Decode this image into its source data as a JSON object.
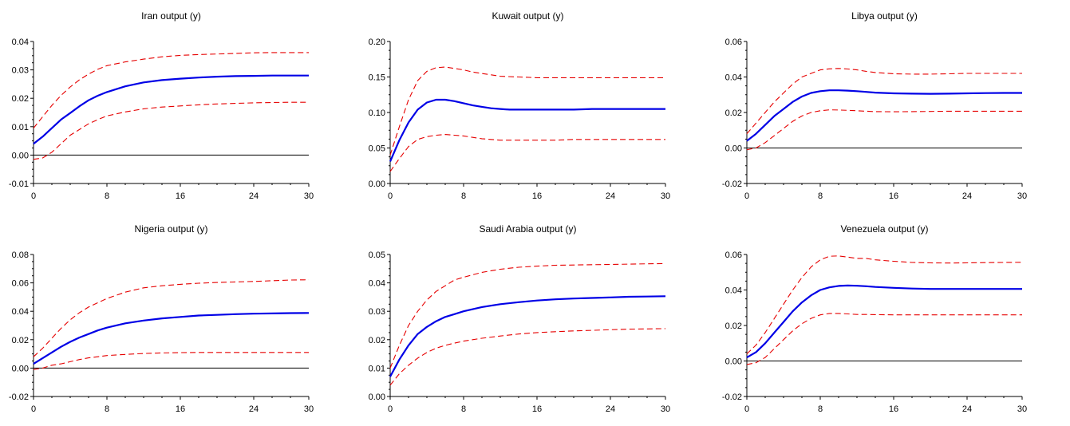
{
  "colors": {
    "irf": "#0000e6",
    "band": "#e60000",
    "axis": "#000000",
    "zero": "#000000"
  },
  "chart_data": [
    {
      "type": "line",
      "title": "Iran output (y)",
      "xlabel": "",
      "ylabel": "",
      "xlim": [
        0,
        30
      ],
      "ylim": [
        -0.01,
        0.04
      ],
      "xticks": [
        0,
        8,
        16,
        24,
        30
      ],
      "yticks": [
        -0.01,
        0.0,
        0.01,
        0.02,
        0.03,
        0.04
      ],
      "ytick_labels": [
        "-0.01",
        "0.00",
        "0.01",
        "0.02",
        "0.03",
        "0.04"
      ],
      "zero_line": true,
      "series": [
        {
          "role": "irf",
          "style": "solid",
          "x": [
            0,
            1,
            2,
            3,
            4,
            5,
            6,
            7,
            8,
            10,
            12,
            14,
            16,
            18,
            20,
            22,
            24,
            26,
            28,
            30
          ],
          "y": [
            0.004,
            0.0065,
            0.0095,
            0.0125,
            0.0148,
            0.0172,
            0.0193,
            0.0209,
            0.0222,
            0.0242,
            0.0256,
            0.0264,
            0.0269,
            0.0273,
            0.0276,
            0.0278,
            0.0279,
            0.028,
            0.028,
            0.028
          ]
        },
        {
          "role": "upper",
          "style": "dashed",
          "x": [
            0,
            1,
            2,
            3,
            4,
            5,
            6,
            7,
            8,
            10,
            12,
            14,
            16,
            18,
            20,
            22,
            24,
            26,
            28,
            30
          ],
          "y": [
            0.0095,
            0.0135,
            0.0175,
            0.021,
            0.024,
            0.0265,
            0.0285,
            0.0302,
            0.0315,
            0.0328,
            0.0338,
            0.0346,
            0.0351,
            0.0354,
            0.0356,
            0.0358,
            0.036,
            0.0361,
            0.0361,
            0.0361
          ]
        },
        {
          "role": "lower",
          "style": "dashed",
          "x": [
            0,
            1,
            2,
            3,
            4,
            5,
            6,
            7,
            8,
            10,
            12,
            14,
            16,
            18,
            20,
            22,
            24,
            26,
            28,
            30
          ],
          "y": [
            -0.0015,
            -0.001,
            0.001,
            0.004,
            0.007,
            0.009,
            0.011,
            0.0125,
            0.0138,
            0.0152,
            0.0163,
            0.0169,
            0.0173,
            0.0177,
            0.018,
            0.0182,
            0.0184,
            0.0185,
            0.0186,
            0.0186
          ]
        }
      ]
    },
    {
      "type": "line",
      "title": "Kuwait output (y)",
      "xlabel": "",
      "ylabel": "",
      "xlim": [
        0,
        30
      ],
      "ylim": [
        0.0,
        0.2
      ],
      "xticks": [
        0,
        8,
        16,
        24,
        30
      ],
      "yticks": [
        0.0,
        0.05,
        0.1,
        0.15,
        0.2
      ],
      "ytick_labels": [
        "0.00",
        "0.05",
        "0.10",
        "0.15",
        "0.20"
      ],
      "zero_line": false,
      "series": [
        {
          "role": "irf",
          "style": "solid",
          "x": [
            0,
            1,
            2,
            3,
            4,
            5,
            6,
            7,
            8,
            9,
            10,
            11,
            12,
            13,
            14,
            16,
            18,
            20,
            22,
            24,
            26,
            28,
            30
          ],
          "y": [
            0.031,
            0.061,
            0.086,
            0.104,
            0.114,
            0.118,
            0.118,
            0.116,
            0.113,
            0.11,
            0.108,
            0.106,
            0.105,
            0.104,
            0.104,
            0.104,
            0.104,
            0.104,
            0.105,
            0.105,
            0.105,
            0.105,
            0.105
          ]
        },
        {
          "role": "upper",
          "style": "dashed",
          "x": [
            0,
            1,
            2,
            3,
            4,
            5,
            6,
            7,
            8,
            9,
            10,
            11,
            12,
            14,
            16,
            18,
            20,
            22,
            24,
            26,
            28,
            30
          ],
          "y": [
            0.04,
            0.08,
            0.118,
            0.145,
            0.158,
            0.163,
            0.164,
            0.162,
            0.16,
            0.157,
            0.155,
            0.153,
            0.151,
            0.15,
            0.149,
            0.149,
            0.149,
            0.149,
            0.149,
            0.149,
            0.149,
            0.149
          ]
        },
        {
          "role": "lower",
          "style": "dashed",
          "x": [
            0,
            1,
            2,
            3,
            4,
            5,
            6,
            7,
            8,
            9,
            10,
            11,
            12,
            14,
            16,
            18,
            20,
            22,
            24,
            26,
            28,
            30
          ],
          "y": [
            0.017,
            0.035,
            0.052,
            0.062,
            0.066,
            0.068,
            0.069,
            0.068,
            0.067,
            0.065,
            0.063,
            0.062,
            0.061,
            0.061,
            0.061,
            0.061,
            0.062,
            0.062,
            0.062,
            0.062,
            0.062,
            0.062
          ]
        }
      ]
    },
    {
      "type": "line",
      "title": "Libya output (y)",
      "xlabel": "",
      "ylabel": "",
      "xlim": [
        0,
        30
      ],
      "ylim": [
        -0.02,
        0.06
      ],
      "xticks": [
        0,
        8,
        16,
        24,
        30
      ],
      "yticks": [
        -0.02,
        0.0,
        0.02,
        0.04,
        0.06
      ],
      "ytick_labels": [
        "-0.02",
        "0.00",
        "0.02",
        "0.04",
        "0.06"
      ],
      "zero_line": true,
      "series": [
        {
          "role": "irf",
          "style": "solid",
          "x": [
            0,
            1,
            2,
            3,
            4,
            5,
            6,
            7,
            8,
            9,
            10,
            11,
            12,
            13,
            14,
            16,
            18,
            20,
            22,
            24,
            26,
            28,
            30
          ],
          "y": [
            0.004,
            0.008,
            0.013,
            0.018,
            0.022,
            0.026,
            0.029,
            0.031,
            0.032,
            0.0325,
            0.0325,
            0.0323,
            0.032,
            0.0316,
            0.0312,
            0.0308,
            0.0306,
            0.0305,
            0.0306,
            0.0308,
            0.0309,
            0.031,
            0.031
          ]
        },
        {
          "role": "upper",
          "style": "dashed",
          "x": [
            0,
            1,
            2,
            3,
            4,
            5,
            6,
            7,
            8,
            9,
            10,
            11,
            12,
            13,
            14,
            16,
            18,
            20,
            22,
            24,
            26,
            28,
            30
          ],
          "y": [
            0.008,
            0.014,
            0.02,
            0.026,
            0.031,
            0.036,
            0.04,
            0.042,
            0.044,
            0.0446,
            0.0448,
            0.0445,
            0.044,
            0.0432,
            0.0425,
            0.0418,
            0.0416,
            0.0416,
            0.0418,
            0.042,
            0.042,
            0.042,
            0.042
          ]
        },
        {
          "role": "lower",
          "style": "dashed",
          "x": [
            0,
            1,
            2,
            3,
            4,
            5,
            6,
            7,
            8,
            9,
            10,
            11,
            12,
            13,
            14,
            16,
            18,
            20,
            22,
            24,
            26,
            28,
            30
          ],
          "y": [
            -0.001,
            0.0,
            0.003,
            0.007,
            0.011,
            0.015,
            0.018,
            0.02,
            0.021,
            0.0215,
            0.0214,
            0.0212,
            0.021,
            0.0207,
            0.0205,
            0.0204,
            0.0205,
            0.0206,
            0.0207,
            0.0207,
            0.0207,
            0.0207,
            0.0207
          ]
        }
      ]
    },
    {
      "type": "line",
      "title": "Nigeria output (y)",
      "xlabel": "",
      "ylabel": "",
      "xlim": [
        0,
        30
      ],
      "ylim": [
        -0.02,
        0.08
      ],
      "xticks": [
        0,
        8,
        16,
        24,
        30
      ],
      "yticks": [
        -0.02,
        0.0,
        0.02,
        0.04,
        0.06,
        0.08
      ],
      "ytick_labels": [
        "-0.02",
        "0.00",
        "0.02",
        "0.04",
        "0.06",
        "0.08"
      ],
      "zero_line": true,
      "series": [
        {
          "role": "irf",
          "style": "solid",
          "x": [
            0,
            1,
            2,
            3,
            4,
            5,
            6,
            7,
            8,
            10,
            12,
            14,
            16,
            18,
            20,
            22,
            24,
            26,
            28,
            30
          ],
          "y": [
            0.003,
            0.007,
            0.011,
            0.015,
            0.0185,
            0.0215,
            0.024,
            0.0265,
            0.0285,
            0.0315,
            0.0335,
            0.035,
            0.036,
            0.037,
            0.0375,
            0.038,
            0.0383,
            0.0385,
            0.0387,
            0.0388
          ]
        },
        {
          "role": "upper",
          "style": "dashed",
          "x": [
            0,
            1,
            2,
            3,
            4,
            5,
            6,
            7,
            8,
            10,
            12,
            14,
            16,
            18,
            20,
            22,
            24,
            26,
            28,
            30
          ],
          "y": [
            0.008,
            0.014,
            0.021,
            0.028,
            0.034,
            0.039,
            0.043,
            0.046,
            0.049,
            0.0535,
            0.0565,
            0.058,
            0.059,
            0.0598,
            0.0603,
            0.0607,
            0.061,
            0.0615,
            0.062,
            0.0622
          ]
        },
        {
          "role": "lower",
          "style": "dashed",
          "x": [
            0,
            1,
            2,
            3,
            4,
            5,
            6,
            7,
            8,
            10,
            12,
            14,
            16,
            18,
            20,
            22,
            24,
            26,
            28,
            30
          ],
          "y": [
            -0.001,
            0.0,
            0.002,
            0.003,
            0.0045,
            0.006,
            0.0072,
            0.008,
            0.0088,
            0.0096,
            0.0103,
            0.0107,
            0.0109,
            0.011,
            0.011,
            0.011,
            0.011,
            0.011,
            0.011,
            0.011
          ]
        }
      ]
    },
    {
      "type": "line",
      "title": "Saudi Arabia output (y)",
      "xlabel": "",
      "ylabel": "",
      "xlim": [
        0,
        30
      ],
      "ylim": [
        0.0,
        0.05
      ],
      "xticks": [
        0,
        8,
        16,
        24,
        30
      ],
      "yticks": [
        0.0,
        0.01,
        0.02,
        0.03,
        0.04,
        0.05
      ],
      "ytick_labels": [
        "0.00",
        "0.01",
        "0.02",
        "0.03",
        "0.04",
        "0.05"
      ],
      "zero_line": false,
      "series": [
        {
          "role": "irf",
          "style": "solid",
          "x": [
            0,
            1,
            2,
            3,
            4,
            5,
            6,
            7,
            8,
            10,
            12,
            14,
            16,
            18,
            20,
            22,
            24,
            26,
            28,
            30
          ],
          "y": [
            0.007,
            0.013,
            0.018,
            0.022,
            0.0245,
            0.0265,
            0.028,
            0.029,
            0.03,
            0.0315,
            0.0325,
            0.0332,
            0.0338,
            0.0342,
            0.0345,
            0.0347,
            0.0349,
            0.0351,
            0.0352,
            0.0353
          ]
        },
        {
          "role": "upper",
          "style": "dashed",
          "x": [
            0,
            1,
            2,
            3,
            4,
            5,
            6,
            7,
            8,
            10,
            12,
            14,
            16,
            18,
            20,
            22,
            24,
            26,
            28,
            30
          ],
          "y": [
            0.01,
            0.018,
            0.025,
            0.03,
            0.034,
            0.037,
            0.039,
            0.041,
            0.042,
            0.0437,
            0.0448,
            0.0455,
            0.0459,
            0.0462,
            0.0463,
            0.0464,
            0.0465,
            0.0466,
            0.0467,
            0.0468
          ]
        },
        {
          "role": "lower",
          "style": "dashed",
          "x": [
            0,
            1,
            2,
            3,
            4,
            5,
            6,
            7,
            8,
            10,
            12,
            14,
            16,
            18,
            20,
            22,
            24,
            26,
            28,
            30
          ],
          "y": [
            0.004,
            0.008,
            0.011,
            0.0135,
            0.0155,
            0.017,
            0.018,
            0.0188,
            0.0195,
            0.0205,
            0.0213,
            0.022,
            0.0225,
            0.0228,
            0.0231,
            0.0233,
            0.0235,
            0.0237,
            0.0238,
            0.0239
          ]
        }
      ]
    },
    {
      "type": "line",
      "title": "Venezuela output (y)",
      "xlabel": "",
      "ylabel": "",
      "xlim": [
        0,
        30
      ],
      "ylim": [
        -0.02,
        0.06
      ],
      "xticks": [
        0,
        8,
        16,
        24,
        30
      ],
      "yticks": [
        -0.02,
        0.0,
        0.02,
        0.04,
        0.06
      ],
      "ytick_labels": [
        "-0.02",
        "0.00",
        "0.02",
        "0.04",
        "0.06"
      ],
      "zero_line": true,
      "series": [
        {
          "role": "irf",
          "style": "solid",
          "x": [
            0,
            1,
            2,
            3,
            4,
            5,
            6,
            7,
            8,
            9,
            10,
            11,
            12,
            13,
            14,
            16,
            18,
            20,
            22,
            24,
            26,
            28,
            30
          ],
          "y": [
            0.002,
            0.005,
            0.01,
            0.016,
            0.022,
            0.028,
            0.033,
            0.037,
            0.04,
            0.0415,
            0.0423,
            0.0425,
            0.0424,
            0.0421,
            0.0417,
            0.0412,
            0.0408,
            0.0406,
            0.0406,
            0.0406,
            0.0406,
            0.0406,
            0.0406
          ]
        },
        {
          "role": "upper",
          "style": "dashed",
          "x": [
            0,
            1,
            2,
            3,
            4,
            5,
            6,
            7,
            8,
            9,
            10,
            11,
            12,
            13,
            14,
            16,
            18,
            20,
            22,
            24,
            26,
            28,
            30
          ],
          "y": [
            0.004,
            0.009,
            0.016,
            0.024,
            0.032,
            0.04,
            0.047,
            0.053,
            0.057,
            0.059,
            0.0592,
            0.0585,
            0.0578,
            0.0578,
            0.057,
            0.0562,
            0.0555,
            0.0553,
            0.0552,
            0.0553,
            0.0554,
            0.0555,
            0.0556
          ]
        },
        {
          "role": "lower",
          "style": "dashed",
          "x": [
            0,
            1,
            2,
            3,
            4,
            5,
            6,
            7,
            8,
            9,
            10,
            11,
            12,
            13,
            14,
            16,
            18,
            20,
            22,
            24,
            26,
            28,
            30
          ],
          "y": [
            -0.002,
            -0.001,
            0.002,
            0.007,
            0.012,
            0.017,
            0.021,
            0.024,
            0.026,
            0.0268,
            0.0268,
            0.0265,
            0.0262,
            0.0262,
            0.0261,
            0.026,
            0.026,
            0.026,
            0.026,
            0.026,
            0.026,
            0.026,
            0.026
          ]
        }
      ]
    }
  ]
}
